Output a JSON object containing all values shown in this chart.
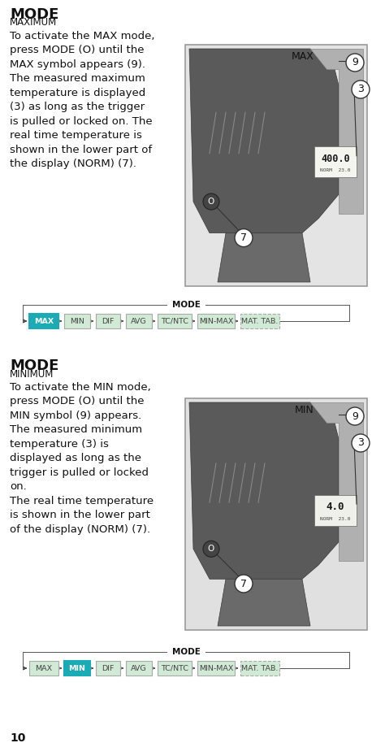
{
  "title1": "MODE",
  "subtitle1": "MAXIMUM",
  "title2": "MODE",
  "subtitle2": "MINIMUM",
  "text1": "To activate the MAX mode,\npress MODE (O) until the\nMAX symbol appears (9).\nThe measured maximum\ntemperature is displayed\n(3) as long as the trigger\nis pulled or locked on. The\nreal time temperature is\nshown in the lower part of\nthe display (NORM) (7).",
  "text2": "To activate the MIN mode,\npress MODE (O) until the\nMIN symbol (9) appears.\nThe measured minimum\ntemperature (3) is\ndisplayed as long as the\ntrigger is pulled or locked\non.\nThe real time temperature\nis shown in the lower part\nof the display (NORM) (7).",
  "mode_labels": [
    "MAX",
    "MIN",
    "DIF",
    "AVG",
    "TC/NTC",
    "MIN-MAX",
    "MAT. TAB."
  ],
  "active_max": 0,
  "active_min": 1,
  "active_color": "#1aabb5",
  "inactive_color": "#d0ead5",
  "inactive_border": "#aaaaaa",
  "active_border": "#1aabb5",
  "page_number": "10",
  "bg_color": "#ffffff",
  "text_color": "#111111",
  "title_fontsize": 13,
  "subtitle_fontsize": 8.5,
  "body_fontsize": 9.5,
  "mode_bar_label_fontsize": 6.8
}
